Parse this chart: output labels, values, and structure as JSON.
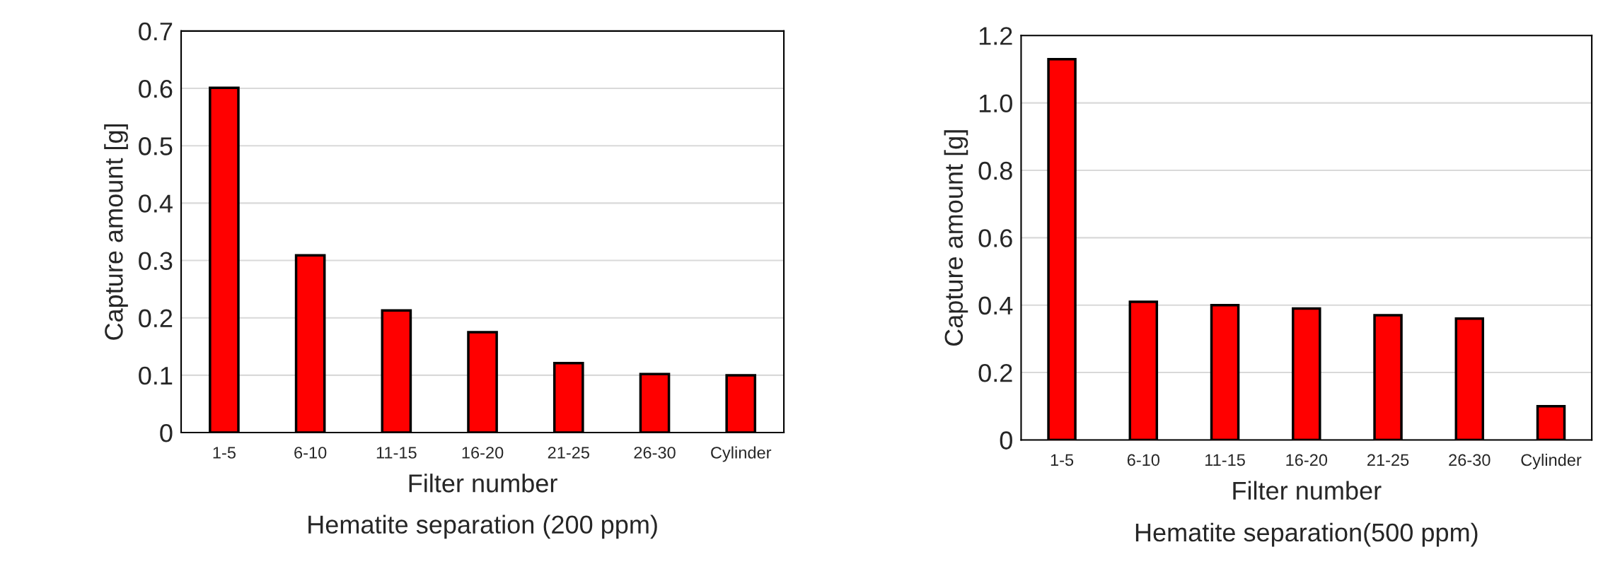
{
  "chart_data": [
    {
      "type": "bar",
      "title": "Hematite separation (200 ppm)",
      "xlabel": "Filter number",
      "ylabel": "Capture amount [g]",
      "categories": [
        "1-5",
        "6-10",
        "11-15",
        "16-20",
        "21-25",
        "26-30",
        "Cylinder"
      ],
      "values": [
        0.601,
        0.309,
        0.213,
        0.175,
        0.121,
        0.102,
        0.1
      ],
      "color": "#ff0000",
      "ylim": [
        0,
        0.7
      ],
      "yticks": [
        0,
        0.1,
        0.2,
        0.3,
        0.4,
        0.5,
        0.6,
        0.7
      ],
      "grid": "y",
      "legend": false
    },
    {
      "type": "bar",
      "title": "Hematite separation(500 ppm)",
      "xlabel": "Filter number",
      "ylabel": "Capture amount [g]",
      "categories": [
        "1-5",
        "6-10",
        "11-15",
        "16-20",
        "21-25",
        "26-30",
        "Cylinder"
      ],
      "values": [
        1.13,
        0.41,
        0.4,
        0.39,
        0.37,
        0.36,
        0.1
      ],
      "color": "#ff0000",
      "ylim": [
        0,
        1.2
      ],
      "yticks": [
        0,
        0.2,
        0.4,
        0.6,
        0.8,
        {
          "value": 1.0,
          "label": "1.0"
        },
        1.2
      ],
      "grid": "y",
      "legend": false
    }
  ]
}
